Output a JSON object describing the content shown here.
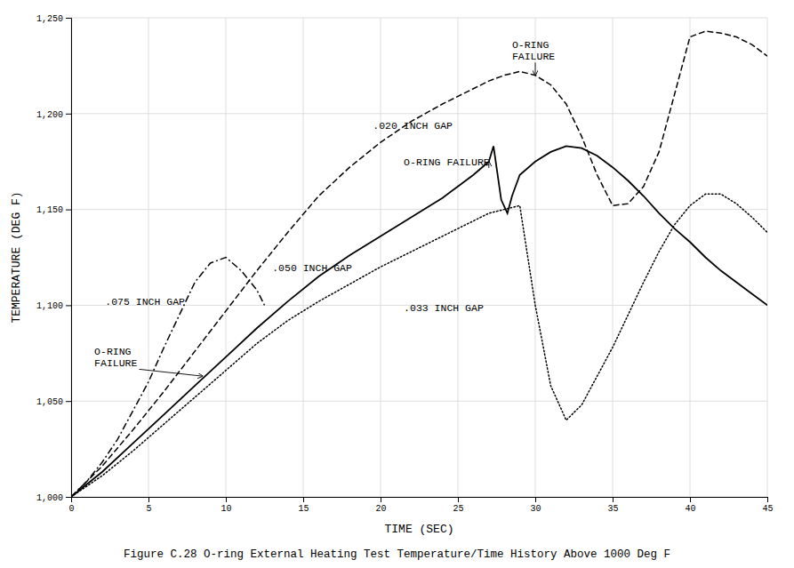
{
  "chart_data": {
    "type": "line",
    "title": "Figure C.28  O-ring External Heating Test Temperature/Time History Above 1000 Deg F",
    "xlabel": "TIME (SEC)",
    "ylabel": "TEMPERATURE (DEG F)",
    "xlim": [
      0,
      45
    ],
    "ylim": [
      1000,
      1250
    ],
    "xticks": [
      0,
      5,
      10,
      15,
      20,
      25,
      30,
      35,
      40,
      45
    ],
    "yticks": [
      {
        "value": 1000,
        "label": "1,000"
      },
      {
        "value": 1050,
        "label": "1,050"
      },
      {
        "value": 1100,
        "label": "1,100"
      },
      {
        "value": 1150,
        "label": "1,150"
      },
      {
        "value": 1200,
        "label": "1,200"
      },
      {
        "value": 1250,
        "label": "1,250"
      }
    ],
    "grid": true,
    "series": [
      {
        "color": "#000000",
        "line_style": "dashdot",
        "x": [
          0,
          1,
          2,
          3,
          4,
          5,
          6,
          7,
          8,
          9,
          10,
          11,
          12,
          12.5
        ],
        "values": [
          1000,
          1008,
          1018,
          1030,
          1045,
          1060,
          1078,
          1095,
          1112,
          1122,
          1125,
          1118,
          1108,
          1100
        ]
      },
      {
        "color": "#000000",
        "line_style": "solid",
        "x": [
          0,
          2,
          4,
          6,
          8,
          10,
          12,
          14,
          16,
          18,
          20,
          22,
          24,
          25,
          26,
          27,
          27.3,
          27.8,
          28.2,
          28.5,
          29,
          30,
          31,
          32,
          33,
          34,
          35,
          36,
          37,
          38,
          39,
          40,
          41,
          42,
          43,
          44,
          45
        ],
        "values": [
          1000,
          1013,
          1028,
          1043,
          1058,
          1073,
          1088,
          1102,
          1115,
          1126,
          1136,
          1146,
          1156,
          1162,
          1168,
          1175,
          1183,
          1155,
          1148,
          1157,
          1168,
          1175,
          1180,
          1183,
          1182,
          1178,
          1172,
          1165,
          1157,
          1148,
          1140,
          1133,
          1125,
          1118,
          1112,
          1106,
          1100
        ]
      },
      {
        "color": "#000000",
        "line_style": "dashed",
        "x": [
          0,
          2,
          4,
          6,
          8,
          10,
          12,
          14,
          16,
          18,
          20,
          22,
          24,
          26,
          27,
          28,
          29,
          30,
          31,
          32,
          33,
          34,
          35,
          36,
          37,
          38,
          39,
          40,
          41,
          42,
          43,
          44,
          45
        ],
        "values": [
          1000,
          1016,
          1035,
          1055,
          1076,
          1097,
          1118,
          1138,
          1157,
          1172,
          1185,
          1196,
          1205,
          1213,
          1217,
          1220,
          1222,
          1220,
          1215,
          1205,
          1188,
          1168,
          1152,
          1153,
          1162,
          1180,
          1210,
          1240,
          1243,
          1242,
          1240,
          1236,
          1230
        ]
      },
      {
        "color": "#000000",
        "line_style": "dotted",
        "x": [
          0,
          2,
          4,
          6,
          8,
          10,
          12,
          14,
          16,
          18,
          20,
          22,
          24,
          25,
          26,
          27,
          28,
          29,
          30,
          31,
          32,
          33,
          34,
          35,
          36,
          37,
          38,
          39,
          40,
          41,
          42,
          43,
          44,
          45
        ],
        "values": [
          1000,
          1011,
          1024,
          1038,
          1052,
          1066,
          1080,
          1092,
          1102,
          1111,
          1120,
          1128,
          1136,
          1140,
          1144,
          1148,
          1150,
          1152,
          1100,
          1058,
          1040,
          1048,
          1063,
          1078,
          1095,
          1112,
          1128,
          1142,
          1152,
          1158,
          1158,
          1153,
          1146,
          1138
        ]
      }
    ],
    "annotations": [
      {
        "text": ".075 INCH GAP"
      },
      {
        "text": "O-RING\nFAILURE"
      },
      {
        "text": ".050 INCH GAP"
      },
      {
        "text": ".020 INCH GAP"
      },
      {
        "text": ".033 INCH GAP"
      },
      {
        "text": "O-RING FAILURE"
      },
      {
        "text": "O-RING\nFAILURE"
      }
    ]
  }
}
